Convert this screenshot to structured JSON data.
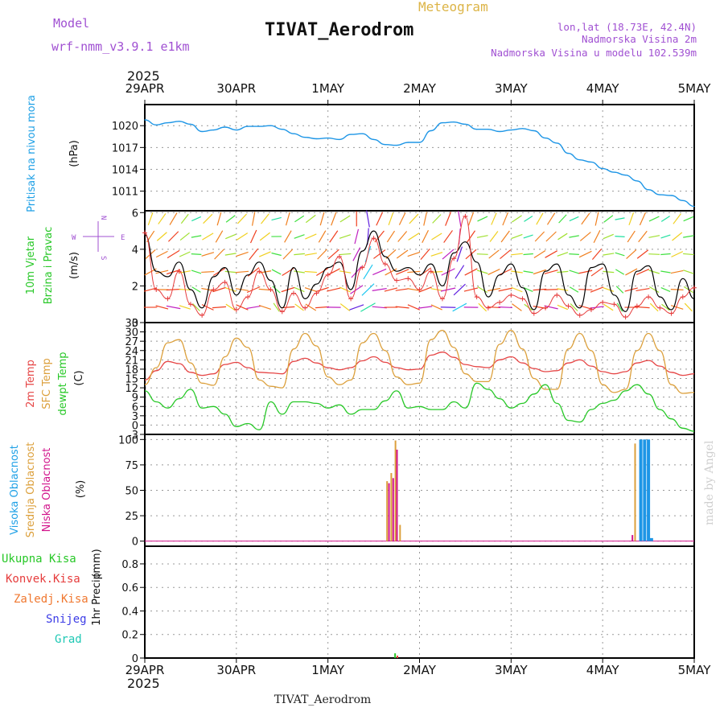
{
  "header": {
    "model_label": "Model",
    "model_name": "wrf-nmm_v3.9.1 e1km",
    "meteogram_label": "Meteogram",
    "station_title": "TIVAT_Aerodrom",
    "lonlat": "lon,lat (18.73E, 42.4N)",
    "elevation": "Nadmorska Visina 2m",
    "model_elevation": "Nadmorska Visina u modelu 102.539m",
    "footer_station": "TIVAT_Aerodrom",
    "watermark": "made by Angel"
  },
  "colors": {
    "pressure": "#1e96e6",
    "wind_speed": "#000000",
    "wind_gust": "#e63c3c",
    "t2m": "#e64646",
    "sfc_temp": "#dca03c",
    "dewpoint": "#28c828",
    "cloud_high": "#1e96e6",
    "cloud_mid": "#dca03c",
    "cloud_low": "#d2148c",
    "model_label": "#a050d2",
    "meteogram_label": "#dcb446"
  },
  "time_axis": {
    "top_year": "2025",
    "bottom_year": "2025",
    "labels": [
      "29APR",
      "30APR",
      "1MAY",
      "2MAY",
      "3MAY",
      "4MAY",
      "5MAY"
    ]
  },
  "chart_data": [
    {
      "type": "line",
      "panel": "pressure",
      "ylabel_main": "Pritisak na nivou mora",
      "unit": "(hPa)",
      "yticks": [
        "1020",
        "1017",
        "1014",
        "1011"
      ],
      "ylim": [
        1008.3,
        1022.9
      ],
      "x_hours": [
        0,
        3,
        6,
        9,
        12,
        15,
        18,
        21,
        24,
        27,
        30,
        33,
        36,
        39,
        42,
        45,
        48,
        51,
        54,
        57,
        60,
        63,
        66,
        69,
        72,
        75,
        78,
        81,
        84,
        87,
        90,
        93,
        96,
        99,
        102,
        105,
        108,
        111,
        114,
        117,
        120,
        123,
        126,
        129,
        132,
        135,
        138,
        141,
        144
      ],
      "values": [
        1020.8,
        1020.1,
        1020.4,
        1020.6,
        1020.2,
        1019.2,
        1019.4,
        1019.8,
        1019.4,
        1019.9,
        1019.9,
        1020.0,
        1019.5,
        1018.9,
        1018.4,
        1018.2,
        1018.3,
        1018.1,
        1018.8,
        1018.9,
        1018.1,
        1017.4,
        1017.3,
        1017.7,
        1017.7,
        1019.3,
        1020.4,
        1020.5,
        1020.2,
        1019.5,
        1019.5,
        1019.2,
        1019.4,
        1019.6,
        1019.3,
        1018.3,
        1017.6,
        1016.2,
        1015.3,
        1015.0,
        1014.1,
        1013.6,
        1013.2,
        1012.4,
        1011.2,
        1010.5,
        1010.4,
        1009.7,
        1008.9
      ],
      "grid": true
    },
    {
      "type": "line",
      "panel": "wind",
      "ylabel_main": "10m Vjetar",
      "ylabel_sub": "Brzina i Pravac",
      "unit": "(m/s)",
      "compass": {
        "n": "N",
        "s": "S",
        "e": "E",
        "w": "W"
      },
      "yticks": [
        "6",
        "4",
        "2",
        "0"
      ],
      "ylim": [
        0,
        6.1
      ],
      "x_hours": [
        0,
        3,
        6,
        9,
        12,
        15,
        18,
        21,
        24,
        27,
        30,
        33,
        36,
        39,
        42,
        45,
        48,
        51,
        54,
        57,
        60,
        63,
        66,
        69,
        72,
        75,
        78,
        81,
        84,
        87,
        90,
        93,
        96,
        99,
        102,
        105,
        108,
        111,
        114,
        117,
        120,
        123,
        126,
        129,
        132,
        135,
        138,
        141,
        144
      ],
      "series": [
        {
          "name": "speed",
          "values": [
            4.8,
            2.8,
            2.5,
            3.3,
            1.8,
            0.8,
            2.5,
            3.0,
            1.5,
            2.6,
            3.3,
            2.3,
            0.8,
            3.0,
            1.3,
            2.1,
            3.0,
            3.3,
            1.8,
            3.9,
            5.0,
            3.6,
            2.8,
            3.0,
            2.6,
            3.2,
            2.0,
            3.8,
            4.4,
            3.3,
            1.4,
            2.6,
            3.2,
            1.9,
            0.7,
            2.8,
            3.2,
            1.5,
            0.8,
            3.0,
            3.2,
            1.5,
            0.6,
            2.8,
            3.1,
            1.4,
            0.7,
            2.4,
            1.3
          ]
        },
        {
          "name": "gust",
          "values": [
            4.9,
            1.8,
            1.3,
            2.8,
            1.0,
            0.4,
            1.8,
            2.2,
            0.7,
            1.4,
            2.8,
            1.8,
            0.6,
            1.6,
            0.8,
            1.6,
            2.6,
            3.6,
            1.3,
            3.0,
            4.6,
            3.2,
            2.3,
            2.4,
            1.8,
            2.8,
            1.3,
            3.5,
            5.8,
            1.4,
            0.8,
            1.1,
            1.5,
            1.3,
            0.5,
            0.8,
            1.5,
            0.9,
            0.4,
            0.7,
            1.1,
            1.0,
            0.3,
            0.9,
            1.4,
            0.8,
            0.5,
            1.4,
            1.9
          ]
        }
      ],
      "grid": true
    },
    {
      "type": "line",
      "panel": "temperature",
      "legend": [
        "2m Temp",
        "SFC Temp",
        "dewpt Temp"
      ],
      "unit": "(C)",
      "yticks": [
        "33",
        "30",
        "27",
        "24",
        "21",
        "18",
        "15",
        "12",
        "9",
        "6",
        "3",
        "0",
        "-3"
      ],
      "ylim": [
        -3,
        33
      ],
      "x_hours": [
        0,
        3,
        6,
        9,
        12,
        15,
        18,
        21,
        24,
        27,
        30,
        33,
        36,
        39,
        42,
        45,
        48,
        51,
        54,
        57,
        60,
        63,
        66,
        69,
        72,
        75,
        78,
        81,
        84,
        87,
        90,
        93,
        96,
        99,
        102,
        105,
        108,
        111,
        114,
        117,
        120,
        123,
        126,
        129,
        132,
        135,
        138,
        141,
        144
      ],
      "series": [
        {
          "name": "2m Temp",
          "values": [
            14.5,
            17.5,
            20.5,
            19.8,
            17.0,
            16.0,
            16.5,
            19.5,
            20.2,
            18.5,
            17.0,
            16.8,
            16.5,
            20.5,
            21.5,
            20.0,
            18.5,
            17.8,
            18.5,
            20.7,
            22.0,
            20.2,
            18.5,
            17.8,
            18.0,
            22.5,
            23.5,
            21.8,
            19.5,
            18.8,
            18.5,
            21.0,
            22.0,
            20.0,
            18.2,
            17.2,
            17.5,
            20.0,
            21.0,
            19.0,
            17.2,
            16.5,
            17.2,
            20.0,
            20.8,
            19.0,
            17.0,
            16.0,
            16.5
          ]
        },
        {
          "name": "SFC Temp",
          "values": [
            13.0,
            18.5,
            26.5,
            27.5,
            20.0,
            13.5,
            12.8,
            22.0,
            28.0,
            25.0,
            14.5,
            12.5,
            12.0,
            24.5,
            29.5,
            25.5,
            15.5,
            13.0,
            14.5,
            26.5,
            29.5,
            24.0,
            15.5,
            13.0,
            13.5,
            27.5,
            30.5,
            25.0,
            16.5,
            14.0,
            14.0,
            26.0,
            30.5,
            24.5,
            15.0,
            11.5,
            11.5,
            24.5,
            29.5,
            24.0,
            13.0,
            10.5,
            11.5,
            24.0,
            29.5,
            24.0,
            13.0,
            10.2,
            10.5
          ]
        },
        {
          "name": "dewpt Temp",
          "values": [
            11.0,
            7.5,
            5.5,
            8.5,
            11.5,
            5.5,
            6.0,
            3.5,
            -0.5,
            0.5,
            -1.5,
            7.5,
            3.5,
            7.5,
            7.5,
            7.0,
            5.5,
            6.5,
            3.5,
            5.0,
            5.0,
            7.8,
            11.0,
            5.5,
            6.0,
            5.0,
            5.0,
            7.5,
            5.5,
            13.5,
            11.5,
            8.5,
            5.5,
            7.0,
            10.0,
            13.0,
            7.0,
            1.5,
            1.0,
            5.0,
            7.0,
            8.0,
            11.0,
            13.0,
            10.0,
            5.0,
            2.0,
            -1.0,
            -2.0
          ]
        }
      ],
      "grid": true
    },
    {
      "type": "bar",
      "panel": "clouds",
      "legend": [
        "Visoka Oblacnost",
        "Srednja Oblacnost",
        "Niska Oblacnost"
      ],
      "unit": "(%)",
      "yticks": [
        "100",
        "75",
        "50",
        "25",
        "0"
      ],
      "ylim": [
        -5,
        105
      ],
      "bars": [
        {
          "series": "Srednja Oblacnost",
          "hour": 63.5,
          "value": 59
        },
        {
          "series": "Niska Oblacnost",
          "hour": 64.0,
          "value": 57
        },
        {
          "series": "Srednja Oblacnost",
          "hour": 64.6,
          "value": 67
        },
        {
          "series": "Niska Oblacnost",
          "hour": 65.1,
          "value": 62
        },
        {
          "series": "Srednja Oblacnost",
          "hour": 65.7,
          "value": 99
        },
        {
          "series": "Niska Oblacnost",
          "hour": 66.1,
          "value": 90
        },
        {
          "series": "Srednja Oblacnost",
          "hour": 66.9,
          "value": 16
        },
        {
          "series": "Niska Oblacnost",
          "hour": 127.8,
          "value": 6
        },
        {
          "series": "Srednja Oblacnost",
          "hour": 128.5,
          "value": 96
        },
        {
          "series": "Visoka Oblacnost",
          "hour": 130.0,
          "value": 100
        },
        {
          "series": "Visoka Oblacnost",
          "hour": 131.0,
          "value": 100
        },
        {
          "series": "Visoka Oblacnost",
          "hour": 132.0,
          "value": 100
        },
        {
          "series": "Visoka Oblacnost",
          "hour": 132.8,
          "value": 3
        }
      ],
      "grid": true
    },
    {
      "type": "bar",
      "panel": "precipitation",
      "legend": [
        "Ukupna Kisa",
        "Konvek.Kisa",
        "Zaledj.Kisa",
        "Snijeg",
        "Grad"
      ],
      "legend_colors": [
        "#28c828",
        "#e63c3c",
        "#f07830",
        "#3c3ce6",
        "#1ec8b4"
      ],
      "ylabel_main": "1hr Precip",
      "unit": "(mm)",
      "yticks": [
        "0.8",
        "0.6",
        "0.4",
        "0.2",
        "0"
      ],
      "ylim": [
        0,
        0.95
      ],
      "bars": [
        {
          "series": "Ukupna Kisa",
          "hour": 65.6,
          "value": 0.04
        },
        {
          "series": "Konvek.Kisa",
          "hour": 66.2,
          "value": 0.02
        }
      ],
      "grid": true
    }
  ]
}
